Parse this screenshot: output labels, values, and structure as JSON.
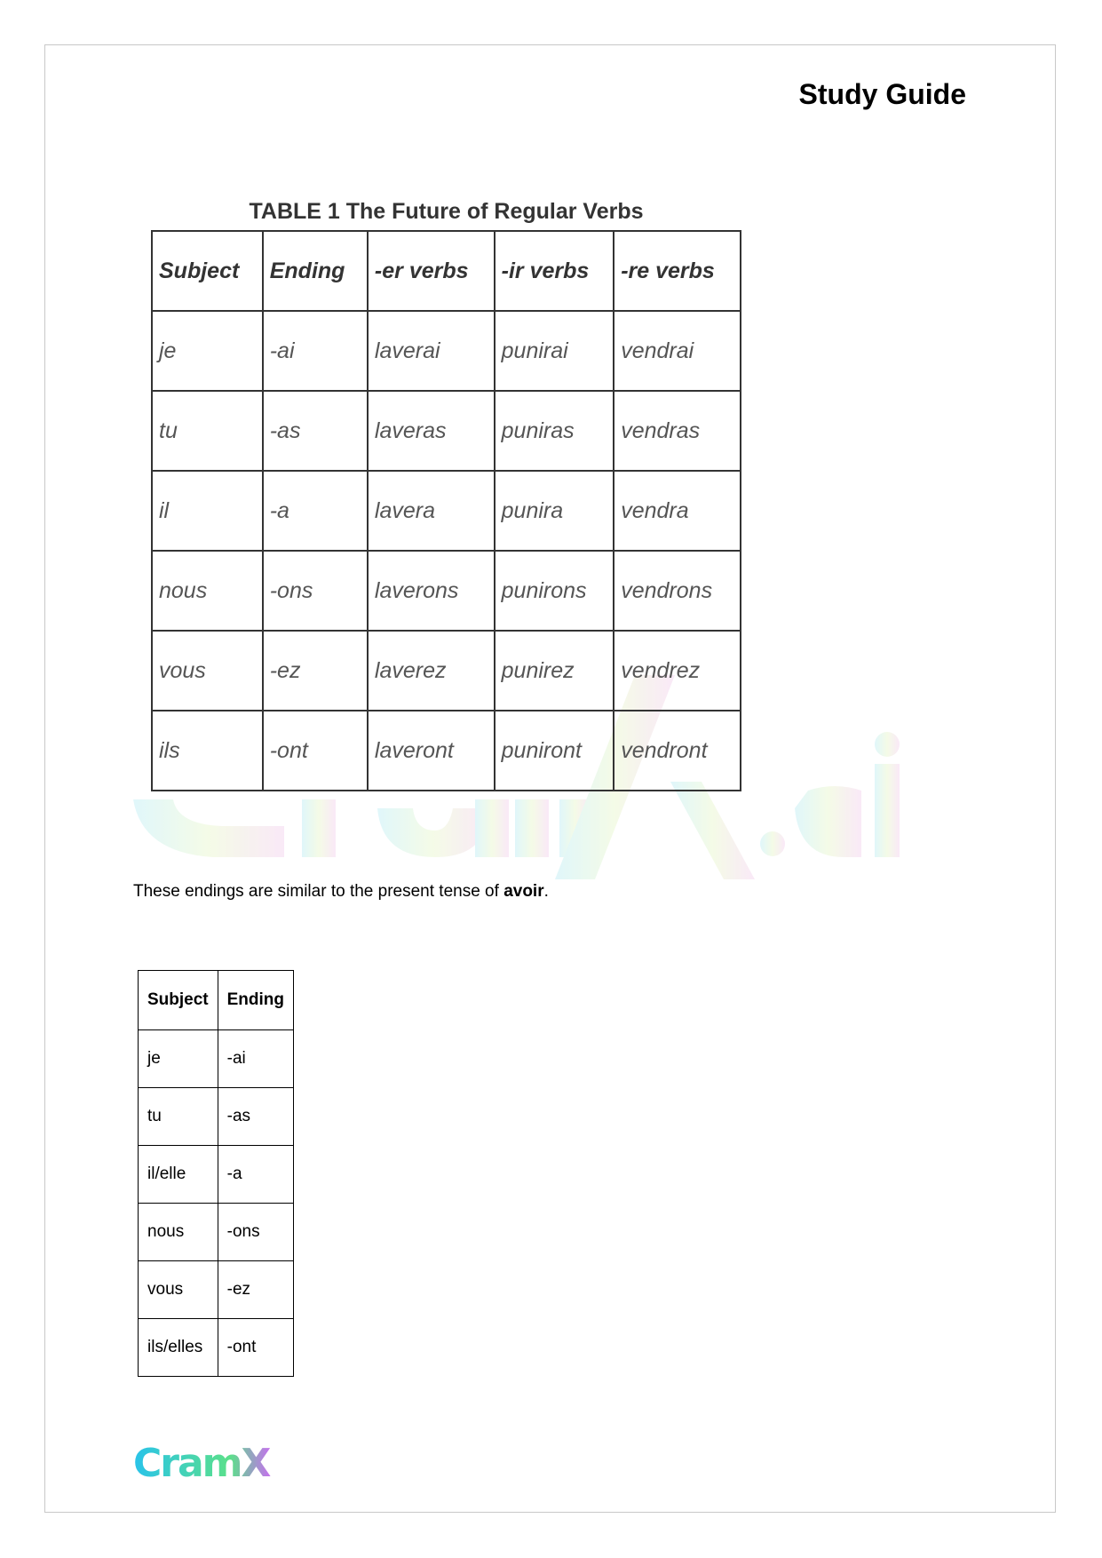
{
  "header": {
    "title": "Study Guide"
  },
  "watermark": {
    "text": "CramX.ai"
  },
  "table1": {
    "caption": "TABLE 1  The Future of Regular Verbs",
    "headers": [
      "Subject",
      "Ending",
      "-er verbs",
      "-ir verbs",
      "-re verbs"
    ],
    "rows": [
      [
        "je",
        "-ai",
        "laverai",
        "punirai",
        "vendrai"
      ],
      [
        "tu",
        "-as",
        "laveras",
        "puniras",
        "vendras"
      ],
      [
        "il",
        "-a",
        "lavera",
        "punira",
        "vendra"
      ],
      [
        "nous",
        "-ons",
        "laverons",
        "punirons",
        "vendrons"
      ],
      [
        "vous",
        "-ez",
        "laverez",
        "punirez",
        "vendrez"
      ],
      [
        "ils",
        "-ont",
        "laveront",
        "puniront",
        "vendront"
      ]
    ]
  },
  "sentence": {
    "before": "These endings are similar to the present tense of ",
    "bold": "avoir",
    "after": "."
  },
  "table2": {
    "headers": [
      "Subject",
      "Ending"
    ],
    "rows": [
      [
        "je",
        "-ai"
      ],
      [
        "tu",
        "-as"
      ],
      [
        "il/elle",
        "-a"
      ],
      [
        "nous",
        "-ons"
      ],
      [
        "vous",
        "-ez"
      ],
      [
        "ils/elles",
        "-ont"
      ]
    ]
  },
  "logo": {
    "text": "CramX",
    "colors": [
      "#29c3ea",
      "#5be08a",
      "#c86ef0"
    ]
  }
}
